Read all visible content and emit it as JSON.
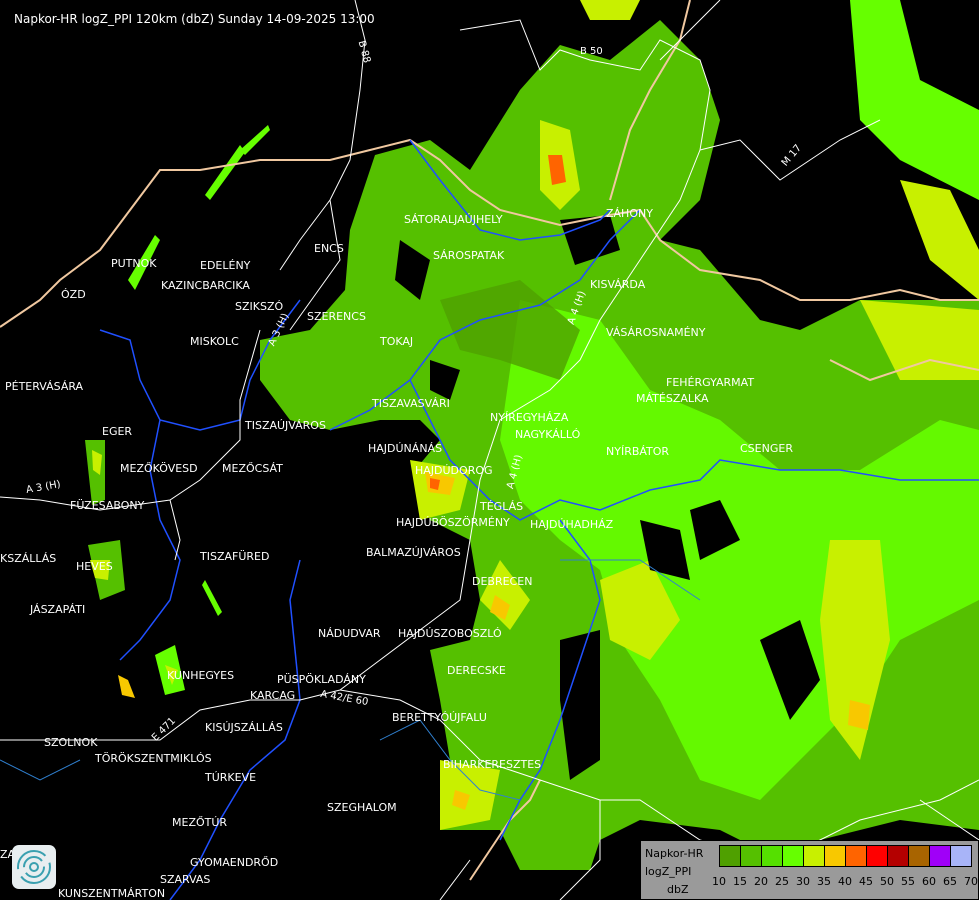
{
  "title": "Napkor-HR logZ_PPI 120km (dbZ) Sunday 14-09-2025 13:00",
  "cities": [
    {
      "name": "SÁTORALJAÚJHELY"
    },
    {
      "name": "SÁROSPATAK"
    },
    {
      "name": "ZÁHONY"
    },
    {
      "name": "KISVÁRDA"
    },
    {
      "name": "ENCS"
    },
    {
      "name": "PUTNOK"
    },
    {
      "name": "EDELÉNY"
    },
    {
      "name": "KAZINCBARCIKA"
    },
    {
      "name": "ÓZD"
    },
    {
      "name": "SZIKSZÓ"
    },
    {
      "name": "SZERENCS"
    },
    {
      "name": "MISKOLC"
    },
    {
      "name": "TOKAJ"
    },
    {
      "name": "VÁSÁROSNAMÉNY"
    },
    {
      "name": "FEHÉRGYARMAT"
    },
    {
      "name": "MÁTÉSZALKA"
    },
    {
      "name": "PÉTERVÁSÁRA"
    },
    {
      "name": "TISZAVASVÁRI"
    },
    {
      "name": "NYÍREGYHÁZA"
    },
    {
      "name": "NAGYKÁLLÓ"
    },
    {
      "name": "TISZAÚJVÁROS"
    },
    {
      "name": "EGER"
    },
    {
      "name": "HAJDÚNÁNÁS"
    },
    {
      "name": "NYÍRBÁTOR"
    },
    {
      "name": "CSENGER"
    },
    {
      "name": "MEZŐKÖVESD"
    },
    {
      "name": "MEZŐCSÁT"
    },
    {
      "name": "HAJDÚDOROG"
    },
    {
      "name": "FÜZESABONY"
    },
    {
      "name": "TÉGLÁS"
    },
    {
      "name": "HAJDÚBÖSZÖRMÉNY"
    },
    {
      "name": "HAJDÚHADHÁZ"
    },
    {
      "name": "BALMAZÚJVÁROS"
    },
    {
      "name": "KSZÁLLÁS"
    },
    {
      "name": "TISZAFÜRED"
    },
    {
      "name": "HEVES"
    },
    {
      "name": "DEBRECEN"
    },
    {
      "name": "JÁSZAPÁTI"
    },
    {
      "name": "NÁDUDVAR"
    },
    {
      "name": "HAJDÚSZOBOSZLÓ"
    },
    {
      "name": "DERECSKE"
    },
    {
      "name": "KUNHEGYES"
    },
    {
      "name": "KARCAG"
    },
    {
      "name": "PÜSPÖKLADÁNY"
    },
    {
      "name": "BERETTYÓÚJFALU"
    },
    {
      "name": "KISÚJSZÁLLÁS"
    },
    {
      "name": "SZOLNOK"
    },
    {
      "name": "TÖRÖKSZENTMIKLÓS"
    },
    {
      "name": "BIHARKERESZTES"
    },
    {
      "name": "TÚRKEVE"
    },
    {
      "name": "SZEGHALOM"
    },
    {
      "name": "MEZŐTÚR"
    },
    {
      "name": "GYOMAENDRŐD"
    },
    {
      "name": "SZARVAS"
    },
    {
      "name": "KUNSZENTMÁRTON"
    },
    {
      "name": "ZA"
    }
  ],
  "roads": [
    {
      "name": "B 88"
    },
    {
      "name": "B 50"
    },
    {
      "name": "M 17"
    },
    {
      "name": "A 4 (H)"
    },
    {
      "name": "A 3 (H)"
    },
    {
      "name": "A 3 (H)"
    },
    {
      "name": "A 42/E 60"
    },
    {
      "name": "E 471"
    },
    {
      "name": "A 4 (H)"
    }
  ],
  "legend": {
    "line1": "Napkor-HR",
    "line2": "logZ_PPI",
    "line3": "dbZ",
    "colors": [
      "#4fa000",
      "#55c000",
      "#55e000",
      "#66ff00",
      "#c8f000",
      "#f8c800",
      "#ff6400",
      "#ff0000",
      "#b40000",
      "#a86400",
      "#a000f8",
      "#a8b4f8"
    ],
    "ticks": [
      "10",
      "15",
      "20",
      "25",
      "30",
      "35",
      "40",
      "45",
      "50",
      "55",
      "60",
      "65",
      "70"
    ]
  }
}
